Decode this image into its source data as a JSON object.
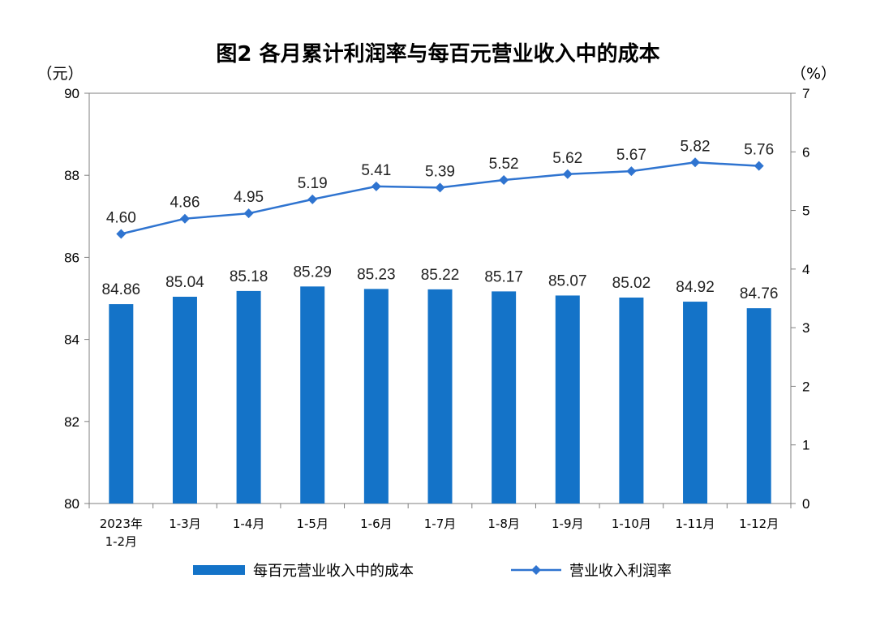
{
  "chart_data": {
    "type": "bar+line",
    "title": "图2  各月累计利润率与每百元营业收入中的成本",
    "categories": [
      [
        "2023年",
        "1-2月"
      ],
      [
        "1-3月"
      ],
      [
        "1-4月"
      ],
      [
        "1-5月"
      ],
      [
        "1-6月"
      ],
      [
        "1-7月"
      ],
      [
        "1-8月"
      ],
      [
        "1-9月"
      ],
      [
        "1-10月"
      ],
      [
        "1-11月"
      ],
      [
        "1-12月"
      ]
    ],
    "left_axis": {
      "unit": "（元）",
      "range": [
        80,
        90
      ],
      "ticks": [
        "80",
        "82",
        "84",
        "86",
        "88",
        "90"
      ]
    },
    "right_axis": {
      "unit": "（%）",
      "range": [
        0,
        7
      ],
      "ticks": [
        "0",
        "1",
        "2",
        "3",
        "4",
        "5",
        "6",
        "7"
      ]
    },
    "series": [
      {
        "name": "每百元营业收入中的成本",
        "type": "bar",
        "axis": "left",
        "color": "#1473c8",
        "values": [
          84.86,
          85.04,
          85.18,
          85.29,
          85.23,
          85.22,
          85.17,
          85.07,
          85.02,
          84.92,
          84.76
        ],
        "labels": [
          "84.86",
          "85.04",
          "85.18",
          "85.29",
          "85.23",
          "85.22",
          "85.17",
          "85.07",
          "85.02",
          "84.92",
          "84.76"
        ]
      },
      {
        "name": "营业收入利润率",
        "type": "line",
        "axis": "right",
        "color": "#2f74d0",
        "marker": "diamond",
        "values": [
          4.6,
          4.86,
          4.95,
          5.19,
          5.41,
          5.39,
          5.52,
          5.62,
          5.67,
          5.82,
          5.76
        ],
        "labels": [
          "4.60",
          "4.86",
          "4.95",
          "5.19",
          "5.41",
          "5.39",
          "5.52",
          "5.62",
          "5.67",
          "5.82",
          "5.76"
        ]
      }
    ],
    "grid": false,
    "legend_position": "bottom"
  }
}
